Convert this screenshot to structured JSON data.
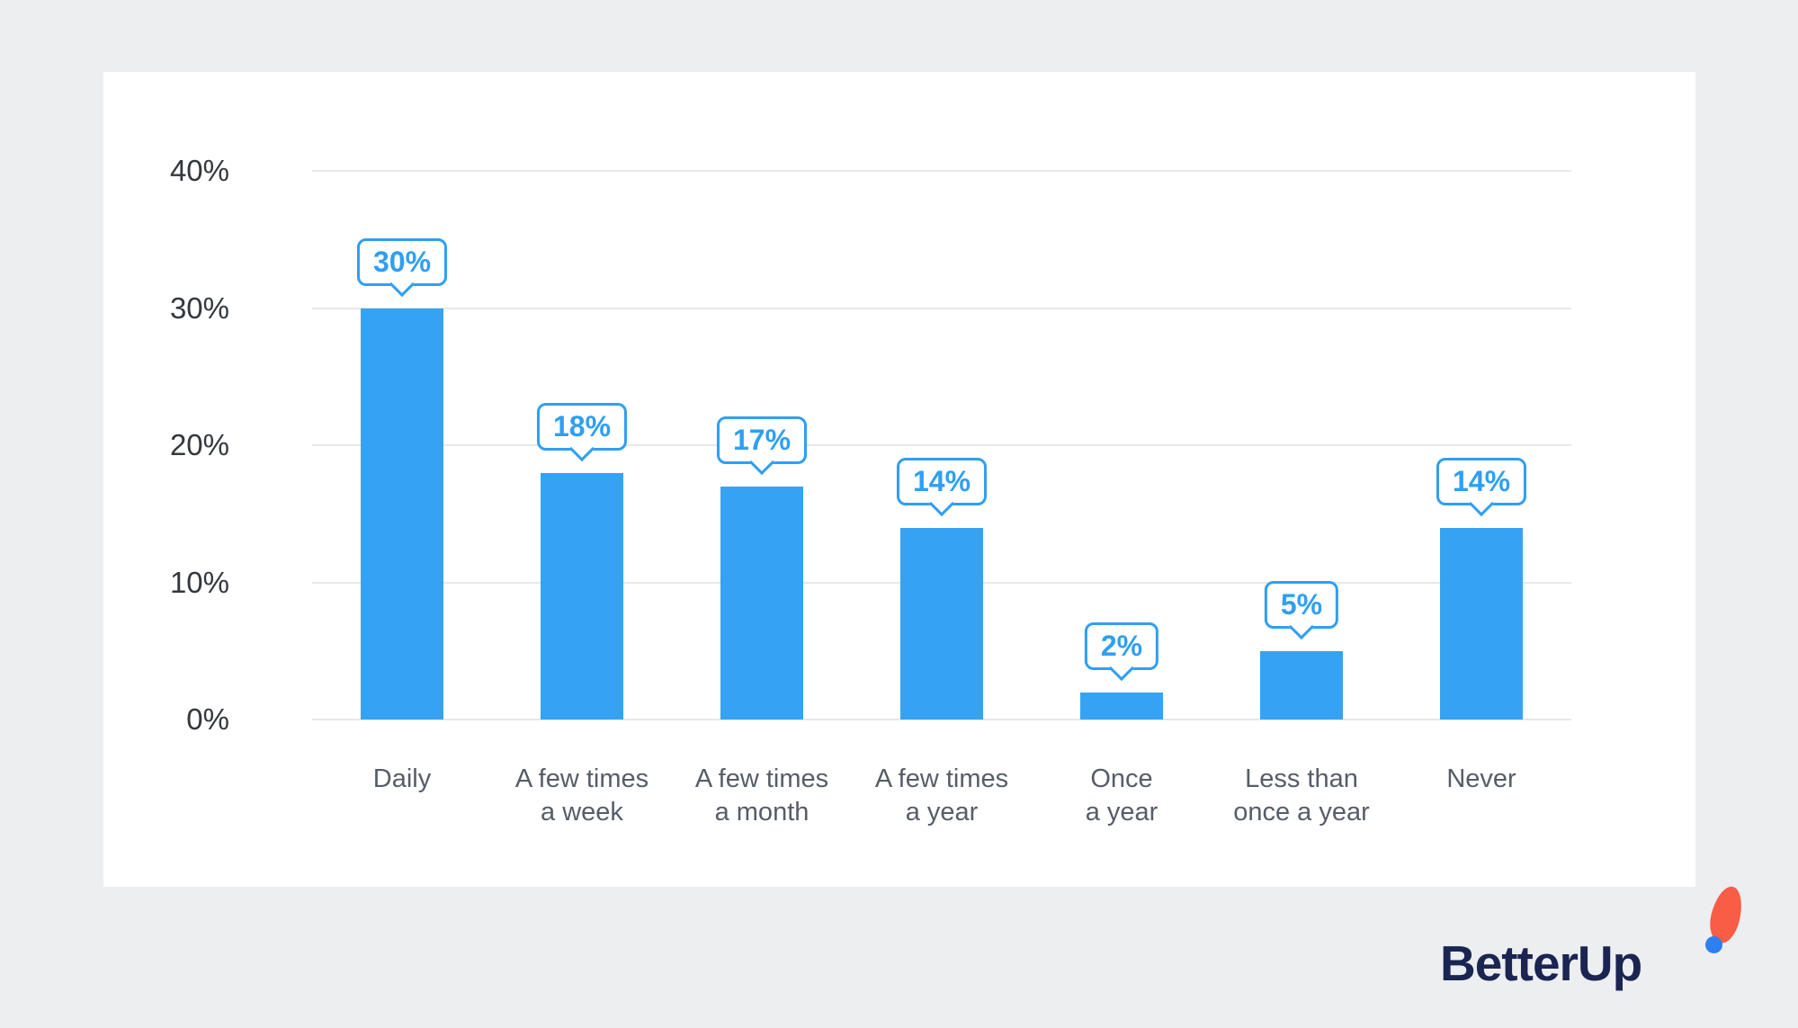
{
  "chart_data": {
    "type": "bar",
    "categories": [
      "Daily",
      "A few times\na week",
      "A few times\na month",
      "A few times\na year",
      "Once\na year",
      "Less than\nonce a year",
      "Never"
    ],
    "values": [
      30,
      18,
      17,
      14,
      2,
      5,
      14
    ],
    "value_labels": [
      "30%",
      "18%",
      "17%",
      "14%",
      "2%",
      "5%",
      "14%"
    ],
    "title": "",
    "xlabel": "",
    "ylabel": "",
    "ylim": [
      0,
      40
    ],
    "yticks": [
      0,
      10,
      20,
      30,
      40
    ],
    "ytick_labels": [
      "0%",
      "10%",
      "20%",
      "30%",
      "40%"
    ],
    "grid": true,
    "legend": false,
    "bar_color": "#35a3f2",
    "callout_color": "#2f9ff2"
  },
  "branding": {
    "logo_text": "BetterUp",
    "logo_navy": "#1b2552",
    "logo_coral": "#f95d45",
    "logo_blue": "#2e7ff0"
  },
  "page": {
    "background": "#eceef0",
    "card_background": "#ffffff"
  }
}
